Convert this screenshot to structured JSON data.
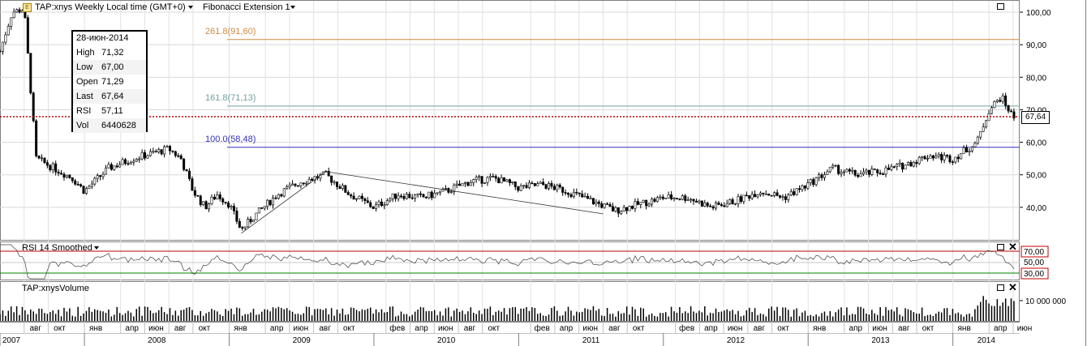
{
  "header": {
    "symbol_title": "TAP:xnys Weekly Local time (GMT+0)",
    "study_title": "Fibonacci Extension 1"
  },
  "ohlc_box": {
    "date": "28-июн-2014",
    "rows": [
      {
        "key": "High",
        "value": "71,32"
      },
      {
        "key": "Low",
        "value": "67,00"
      },
      {
        "key": "Open",
        "value": "71,29"
      },
      {
        "key": "Last",
        "value": "67,64"
      },
      {
        "key": "RSI",
        "value": "57,11"
      },
      {
        "key": "Vol",
        "value": "6440628"
      }
    ]
  },
  "fib_labels": [
    {
      "text": "261.8(91,60)",
      "price": 91.6,
      "color": "#d08a40"
    },
    {
      "text": "161.8(71,13)",
      "price": 71.13,
      "color": "#70a0a0"
    },
    {
      "text": "100.0(58,48)",
      "price": 58.48,
      "color": "#3030c0"
    }
  ],
  "last_price_tag": "67,64",
  "rsi_panel": {
    "title": "RSI 14 Smoothed",
    "upper": "70,00",
    "lower": "30,00",
    "mid": "50,00"
  },
  "volume_panel": {
    "title": "TAP:xnysVolume",
    "tick": "10 000 000"
  },
  "price_ticks": [
    "100,00",
    "90,00",
    "80,00",
    "70,00",
    "60,00",
    "50,00",
    "40,00"
  ],
  "chart_data": {
    "type": "candlestick",
    "title": "TAP:xnys Weekly Local time (GMT+0)",
    "ylim": [
      30,
      103
    ],
    "price_ticks": [
      100,
      90,
      80,
      70,
      60,
      50,
      40
    ],
    "last": 67.64,
    "fibonacci": [
      {
        "level": "261.8",
        "price": 91.6
      },
      {
        "level": "161.8",
        "price": 71.13
      },
      {
        "level": "100.0",
        "price": 58.48
      }
    ],
    "trend_lines": [
      {
        "from": [
          "2009-02",
          32
        ],
        "to": [
          "2009-09",
          51
        ]
      },
      {
        "from": [
          "2009-09",
          51
        ],
        "to": [
          "2011-08",
          38
        ]
      }
    ],
    "close_path": [
      [
        "2007-06",
        88
      ],
      [
        "2007-07",
        100
      ],
      [
        "2007-08",
        101
      ],
      [
        "2007-09",
        55
      ],
      [
        "2007-10",
        53
      ],
      [
        "2007-12",
        49
      ],
      [
        "2008-01",
        45
      ],
      [
        "2008-03",
        52
      ],
      [
        "2008-05",
        55
      ],
      [
        "2008-07",
        57
      ],
      [
        "2008-08",
        58
      ],
      [
        "2008-09",
        55
      ],
      [
        "2008-10",
        45
      ],
      [
        "2008-11",
        40
      ],
      [
        "2008-12",
        44
      ],
      [
        "2009-01",
        41
      ],
      [
        "2009-02",
        33
      ],
      [
        "2009-03",
        37
      ],
      [
        "2009-05",
        44
      ],
      [
        "2009-07",
        48
      ],
      [
        "2009-09",
        50
      ],
      [
        "2009-11",
        44
      ],
      [
        "2010-01",
        40
      ],
      [
        "2010-03",
        44
      ],
      [
        "2010-05",
        43
      ],
      [
        "2010-07",
        45
      ],
      [
        "2010-09",
        48
      ],
      [
        "2010-11",
        49
      ],
      [
        "2011-01",
        46
      ],
      [
        "2011-03",
        47
      ],
      [
        "2011-05",
        45
      ],
      [
        "2011-07",
        42
      ],
      [
        "2011-09",
        39
      ],
      [
        "2011-11",
        41
      ],
      [
        "2012-01",
        43
      ],
      [
        "2012-03",
        43
      ],
      [
        "2012-05",
        40
      ],
      [
        "2012-07",
        42
      ],
      [
        "2012-09",
        45
      ],
      [
        "2012-11",
        43
      ],
      [
        "2013-01",
        47
      ],
      [
        "2013-03",
        52
      ],
      [
        "2013-05",
        50
      ],
      [
        "2013-07",
        51
      ],
      [
        "2013-09",
        53
      ],
      [
        "2013-11",
        56
      ],
      [
        "2014-01",
        55
      ],
      [
        "2014-03",
        60
      ],
      [
        "2014-04",
        70
      ],
      [
        "2014-05",
        74
      ],
      [
        "2014-06",
        67.64
      ]
    ],
    "rsi": {
      "name": "RSI 14 Smoothed",
      "levels": [
        70,
        50,
        30
      ]
    },
    "volume": {
      "name": "TAP:xnysVolume",
      "tick": 10000000
    },
    "x_month_labels": [
      {
        "d": "2007-08",
        "t": "авг"
      },
      {
        "d": "2007-10",
        "t": "окт"
      },
      {
        "d": "2008-01",
        "t": "янв"
      },
      {
        "d": "2008-04",
        "t": "апр"
      },
      {
        "d": "2008-06",
        "t": "июн"
      },
      {
        "d": "2008-08",
        "t": "авг"
      },
      {
        "d": "2008-10",
        "t": "окт"
      },
      {
        "d": "2009-01",
        "t": "янв"
      },
      {
        "d": "2009-04",
        "t": "апр"
      },
      {
        "d": "2009-06",
        "t": "июн"
      },
      {
        "d": "2009-08",
        "t": "авг"
      },
      {
        "d": "2009-10",
        "t": "окт"
      },
      {
        "d": "2010-02",
        "t": "фев"
      },
      {
        "d": "2010-04",
        "t": "апр"
      },
      {
        "d": "2010-06",
        "t": "июн"
      },
      {
        "d": "2010-08",
        "t": "авг"
      },
      {
        "d": "2010-10",
        "t": "окт"
      },
      {
        "d": "2011-02",
        "t": "фев"
      },
      {
        "d": "2011-04",
        "t": "апр"
      },
      {
        "d": "2011-06",
        "t": "июн"
      },
      {
        "d": "2011-08",
        "t": "авг"
      },
      {
        "d": "2011-10",
        "t": "окт"
      },
      {
        "d": "2012-02",
        "t": "фев"
      },
      {
        "d": "2012-04",
        "t": "апр"
      },
      {
        "d": "2012-06",
        "t": "июн"
      },
      {
        "d": "2012-08",
        "t": "авг"
      },
      {
        "d": "2012-10",
        "t": "окт"
      },
      {
        "d": "2013-01",
        "t": "янв"
      },
      {
        "d": "2013-04",
        "t": "апр"
      },
      {
        "d": "2013-06",
        "t": "июн"
      },
      {
        "d": "2013-08",
        "t": "авг"
      },
      {
        "d": "2013-10",
        "t": "окт"
      },
      {
        "d": "2014-01",
        "t": "янв"
      },
      {
        "d": "2014-04",
        "t": "апр"
      },
      {
        "d": "2014-06",
        "t": "июн"
      }
    ],
    "x_year_labels": [
      "2007",
      "2008",
      "2009",
      "2010",
      "2011",
      "2012",
      "2013",
      "2014"
    ]
  }
}
